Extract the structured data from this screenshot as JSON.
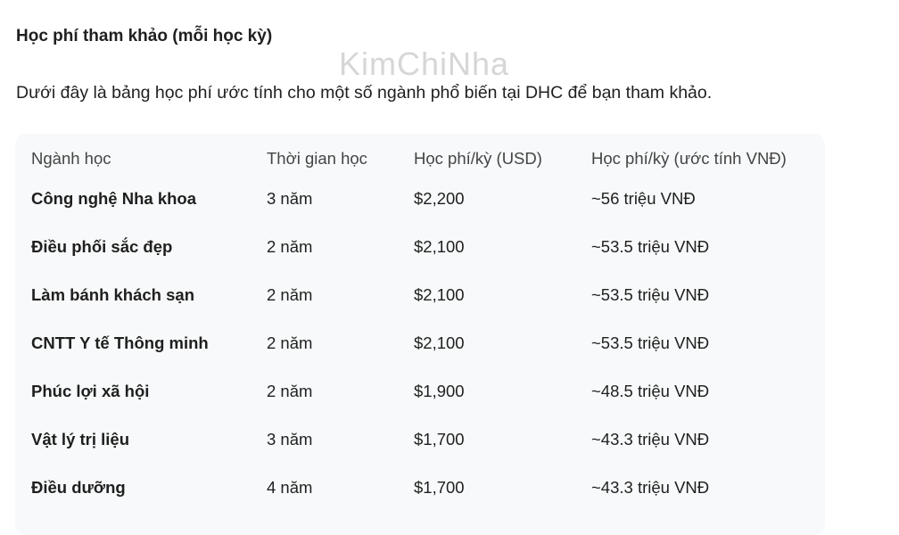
{
  "heading": "Học phí tham khảo (mỗi học kỳ)",
  "intro": "Dưới đây là bảng học phí ước tính cho một số ngành phổ biến tại DHC để bạn tham khảo.",
  "table": {
    "headers": [
      "Ngành học",
      "Thời gian học",
      "Học phí/kỳ (USD)",
      "Học phí/kỳ (ước tính VNĐ)"
    ],
    "rows": [
      [
        "Công nghệ Nha khoa",
        "3 năm",
        "$2,200",
        "~56 triệu VNĐ"
      ],
      [
        "Điều phối sắc đẹp",
        "2 năm",
        "$2,100",
        "~53.5 triệu VNĐ"
      ],
      [
        "Làm bánh khách sạn",
        "2 năm",
        "$2,100",
        "~53.5 triệu VNĐ"
      ],
      [
        "CNTT Y tế Thông minh",
        "2 năm",
        "$2,100",
        "~53.5 triệu VNĐ"
      ],
      [
        "Phúc lợi xã hội",
        "2 năm",
        "$1,900",
        "~48.5 triệu VNĐ"
      ],
      [
        "Vật lý trị liệu",
        "3 năm",
        "$1,700",
        "~43.3 triệu VNĐ"
      ],
      [
        "Điều dưỡng",
        "4 năm",
        "$1,700",
        "~43.3 triệu VNĐ"
      ]
    ]
  },
  "watermark": "KimChiNha"
}
